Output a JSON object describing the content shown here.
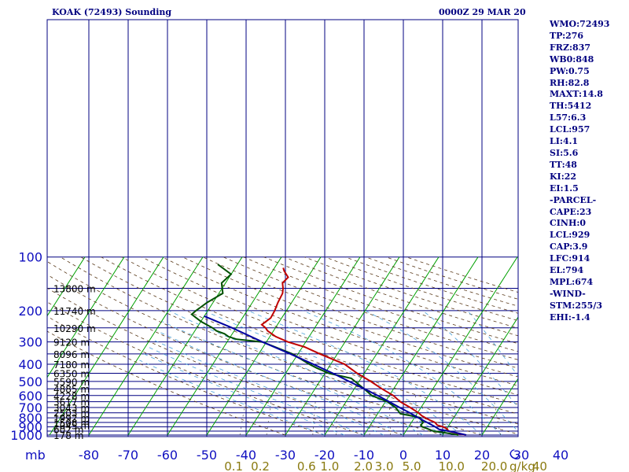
{
  "header": {
    "title": "KOAK (72493) Sounding",
    "datetime": "0000Z 29 MAR 20"
  },
  "indices": [
    "WMO:72493",
    "TP:276",
    "FRZ:837",
    "WB0:848",
    "PW:0.75",
    "RH:82.8",
    "MAXT:14.8",
    "TH:5412",
    "L57:6.3",
    "LCL:957",
    "LI:4.1",
    "SI:5.6",
    "TT:48",
    "KI:22",
    "EI:1.5",
    "-PARCEL-",
    "CAPE:23",
    "CINH:0",
    "LCL:929",
    "CAP:3.9",
    "LFC:914",
    "EL:794",
    "MPL:674",
    "-WIND-",
    "STM:255/3",
    "EHI:-1.4"
  ],
  "chart_data": {
    "type": "line",
    "title": "KOAK (72493) Sounding",
    "y_axis_unit": "mb",
    "x_axis_unit": "C",
    "mixing_ratio_unit": "g/kg",
    "y_scale": "log",
    "ylim": [
      1000,
      100
    ],
    "xlim": [
      -80,
      40
    ],
    "grid": true,
    "pressure_ticks": [
      {
        "p": 100,
        "label": "100"
      },
      {
        "p": 200,
        "label": "200"
      },
      {
        "p": 300,
        "label": "300"
      },
      {
        "p": 400,
        "label": "400"
      },
      {
        "p": 500,
        "label": "500"
      },
      {
        "p": 600,
        "label": "600"
      },
      {
        "p": 700,
        "label": "700"
      },
      {
        "p": 800,
        "label": "800"
      },
      {
        "p": 900,
        "label": "900"
      },
      {
        "p": 1000,
        "label": "1000"
      }
    ],
    "temp_ticks": [
      {
        "t": -80,
        "label": "-80"
      },
      {
        "t": -70,
        "label": "-70"
      },
      {
        "t": -60,
        "label": "-60"
      },
      {
        "t": -50,
        "label": "-50"
      },
      {
        "t": -40,
        "label": "-40"
      },
      {
        "t": -30,
        "label": "-30"
      },
      {
        "t": -20,
        "label": "-20"
      },
      {
        "t": -10,
        "label": "-10"
      },
      {
        "t": 0,
        "label": "0"
      },
      {
        "t": 10,
        "label": "10"
      },
      {
        "t": 20,
        "label": "20"
      },
      {
        "t": 30,
        "label": "30"
      },
      {
        "t": 40,
        "label": "40"
      }
    ],
    "height_labels": [
      {
        "p": 1000,
        "label": "178 m"
      },
      {
        "p": 925,
        "label": "602 m"
      },
      {
        "p": 880,
        "label": "1045 m"
      },
      {
        "p": 850,
        "label": "1508 m"
      },
      {
        "p": 800,
        "label": "1992 m"
      },
      {
        "p": 750,
        "label": "2503 m"
      },
      {
        "p": 700,
        "label": "3043 m"
      },
      {
        "p": 650,
        "label": "3617 m"
      },
      {
        "p": 600,
        "label": "4228 m"
      },
      {
        "p": 550,
        "label": "4885 m"
      },
      {
        "p": 500,
        "label": "5590 m"
      },
      {
        "p": 450,
        "label": "6350 m"
      },
      {
        "p": 400,
        "label": "7180 m"
      },
      {
        "p": 350,
        "label": "8096 m"
      },
      {
        "p": 300,
        "label": "9120 m"
      },
      {
        "p": 250,
        "label": "10290 m"
      },
      {
        "p": 200,
        "label": "11740 m"
      },
      {
        "p": 150,
        "label": "13800 m"
      }
    ],
    "mixing_ratio_labels": [
      "0.1",
      "0.2",
      "0.6",
      "1.0",
      "2.0",
      "3.0",
      "5.0",
      "10.0",
      "20.0",
      "40"
    ],
    "mixing_ratio_values": [
      0.1,
      0.2,
      0.6,
      1.0,
      2.0,
      3.0,
      5.0,
      10.0,
      20.0,
      40
    ],
    "series": [
      {
        "color": "#c00000",
        "points": [
          [
            1000,
            15.8
          ],
          [
            980,
            13.6
          ],
          [
            950,
            10.8
          ],
          [
            925,
            10.2
          ],
          [
            900,
            8.8
          ],
          [
            880,
            7.0
          ],
          [
            850,
            6.0
          ],
          [
            820,
            4.0
          ],
          [
            800,
            2.8
          ],
          [
            780,
            1.6
          ],
          [
            750,
            0.2
          ],
          [
            700,
            -2.8
          ],
          [
            650,
            -6.2
          ],
          [
            600,
            -9.0
          ],
          [
            550,
            -13.0
          ],
          [
            500,
            -17.0
          ],
          [
            450,
            -21.8
          ],
          [
            400,
            -26.5
          ],
          [
            350,
            -34.5
          ],
          [
            320,
            -39.5
          ],
          [
            300,
            -44.5
          ],
          [
            280,
            -48.5
          ],
          [
            260,
            -51.5
          ],
          [
            250,
            -52.5
          ],
          [
            240,
            -54.0
          ],
          [
            220,
            -52.8
          ],
          [
            200,
            -53.0
          ],
          [
            180,
            -53.5
          ],
          [
            160,
            -53.8
          ],
          [
            150,
            -54.5
          ],
          [
            140,
            -55.5
          ],
          [
            130,
            -55.0
          ],
          [
            120,
            -57.0
          ],
          [
            115,
            -57.8
          ]
        ]
      },
      {
        "color": "#005000",
        "points": [
          [
            1000,
            14.0
          ],
          [
            980,
            11.5
          ],
          [
            950,
            7.0
          ],
          [
            920,
            5.0
          ],
          [
            900,
            3.5
          ],
          [
            880,
            2.8
          ],
          [
            850,
            3.0
          ],
          [
            820,
            2.0
          ],
          [
            800,
            1.5
          ],
          [
            780,
            -1.0
          ],
          [
            760,
            -4.2
          ],
          [
            700,
            -6.5
          ],
          [
            650,
            -9.5
          ],
          [
            600,
            -14.5
          ],
          [
            550,
            -17.5
          ],
          [
            500,
            -21.0
          ],
          [
            480,
            -22.5
          ],
          [
            450,
            -29.0
          ],
          [
            420,
            -33.0
          ],
          [
            400,
            -35.5
          ],
          [
            350,
            -41.5
          ],
          [
            320,
            -47.0
          ],
          [
            300,
            -51.0
          ],
          [
            290,
            -58.0
          ],
          [
            280,
            -60.5
          ],
          [
            270,
            -62.0
          ],
          [
            260,
            -64.5
          ],
          [
            250,
            -66.0
          ],
          [
            230,
            -70.0
          ],
          [
            210,
            -73.5
          ],
          [
            200,
            -73.0
          ],
          [
            180,
            -71.5
          ],
          [
            160,
            -69.0
          ],
          [
            140,
            -71.0
          ],
          [
            125,
            -70.0
          ],
          [
            110,
            -75.0
          ]
        ]
      },
      {
        "color": "#0000a0",
        "points": [
          [
            1000,
            16.0
          ],
          [
            960,
            12.0
          ],
          [
            929,
            8.2
          ],
          [
            900,
            6.8
          ],
          [
            850,
            4.0
          ],
          [
            800,
            1.0
          ],
          [
            750,
            -2.0
          ],
          [
            700,
            -5.5
          ],
          [
            650,
            -9.0
          ],
          [
            600,
            -13.0
          ],
          [
            550,
            -17.5
          ],
          [
            500,
            -22.5
          ],
          [
            450,
            -28.0
          ],
          [
            400,
            -34.5
          ],
          [
            350,
            -42.0
          ],
          [
            300,
            -51.0
          ],
          [
            250,
            -61.0
          ],
          [
            215,
            -70.0
          ]
        ]
      }
    ]
  }
}
